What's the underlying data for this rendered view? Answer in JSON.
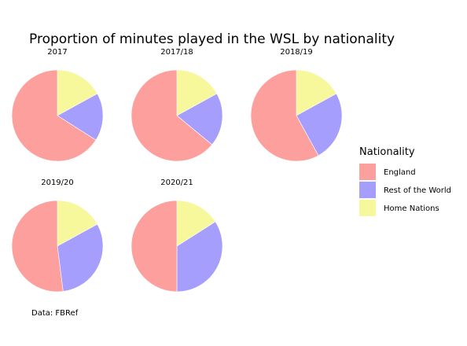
{
  "chart_data": {
    "type": "pie",
    "title": "Proportion of minutes played in the WSL by nationality",
    "caption": "Data: FBRef",
    "legend": {
      "title": "Nationality",
      "position": "right"
    },
    "series": [
      {
        "name": "Home Nations",
        "color": "#f7f79b"
      },
      {
        "name": "Rest of the World",
        "color": "#a69efc"
      },
      {
        "name": "England",
        "color": "#fd9f9c"
      }
    ],
    "facets": [
      {
        "label": "2017",
        "values": {
          "Home Nations": 0.17,
          "Rest of the World": 0.17,
          "England": 0.66
        }
      },
      {
        "label": "2017/18",
        "values": {
          "Home Nations": 0.17,
          "Rest of the World": 0.19,
          "England": 0.64
        }
      },
      {
        "label": "2018/19",
        "values": {
          "Home Nations": 0.17,
          "Rest of the World": 0.25,
          "England": 0.58
        }
      },
      {
        "label": "2019/20",
        "values": {
          "Home Nations": 0.17,
          "Rest of the World": 0.31,
          "England": 0.52
        }
      },
      {
        "label": "2020/21",
        "values": {
          "Home Nations": 0.16,
          "Rest of the World": 0.34,
          "England": 0.5
        }
      }
    ],
    "legend_order": [
      "England",
      "Rest of the World",
      "Home Nations"
    ]
  }
}
